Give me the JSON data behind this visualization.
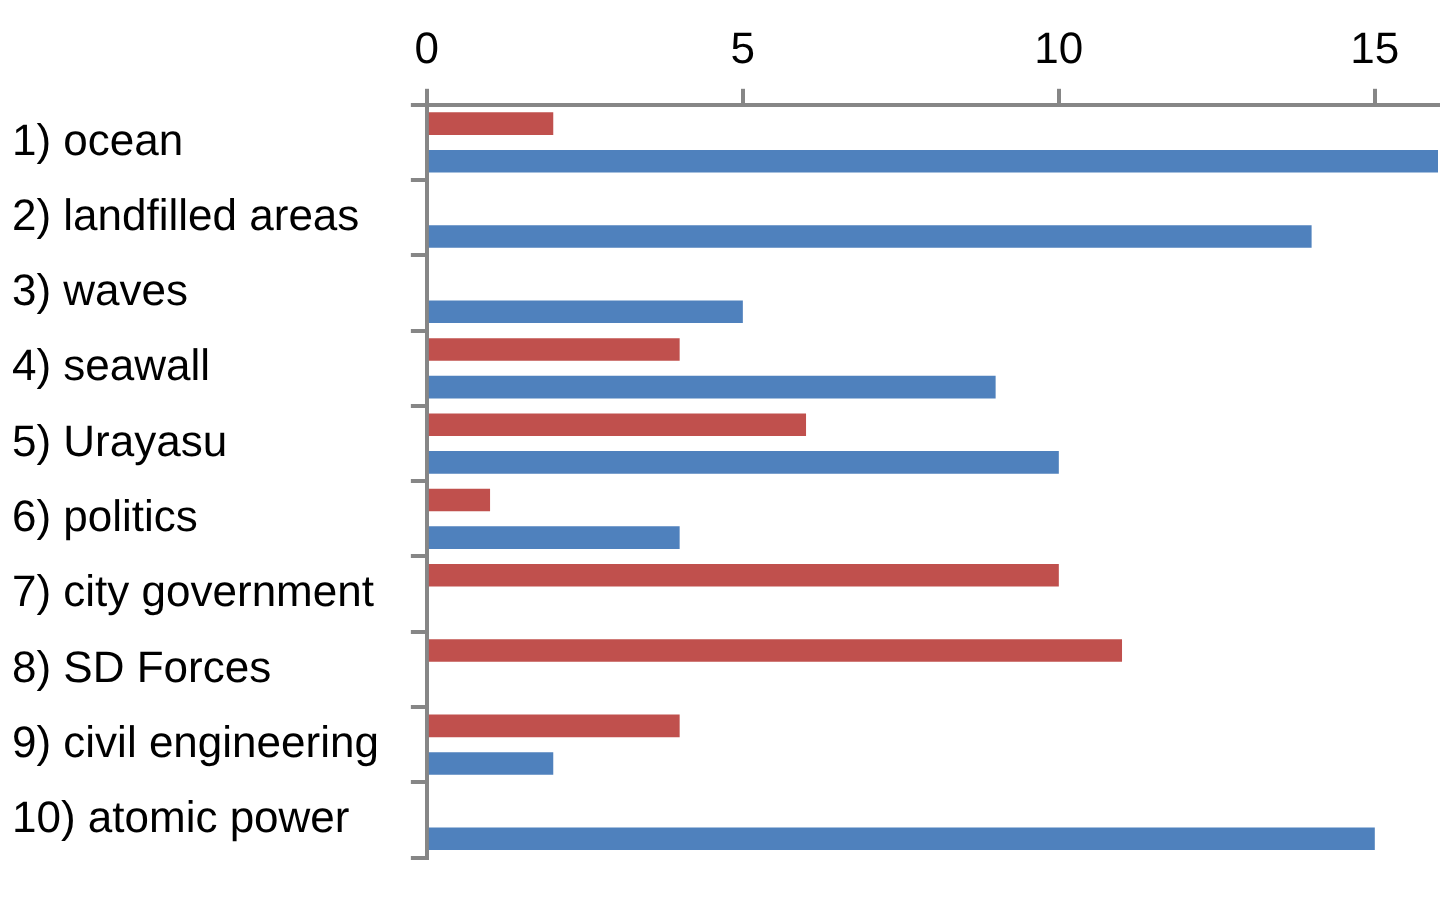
{
  "chart_data": {
    "type": "bar",
    "orientation": "horizontal",
    "categories": [
      "1) ocean",
      "2) landfilled areas",
      "3) waves",
      "4) seawall",
      "5) Urayasu",
      "6) politics",
      "7) city government",
      "8) SD Forces",
      "9) civil engineering",
      "10) atomic power"
    ],
    "series": [
      {
        "color": "#c0504d",
        "values": [
          2,
          null,
          null,
          4,
          6,
          1,
          10,
          11,
          4,
          null
        ]
      },
      {
        "color": "#4f81bd",
        "values": [
          16,
          14,
          5,
          9,
          10,
          4,
          null,
          null,
          2,
          15
        ]
      }
    ],
    "xlim": [
      0,
      16
    ],
    "xticks": [
      0,
      5,
      10,
      15
    ],
    "grid": false,
    "legend": false
  }
}
